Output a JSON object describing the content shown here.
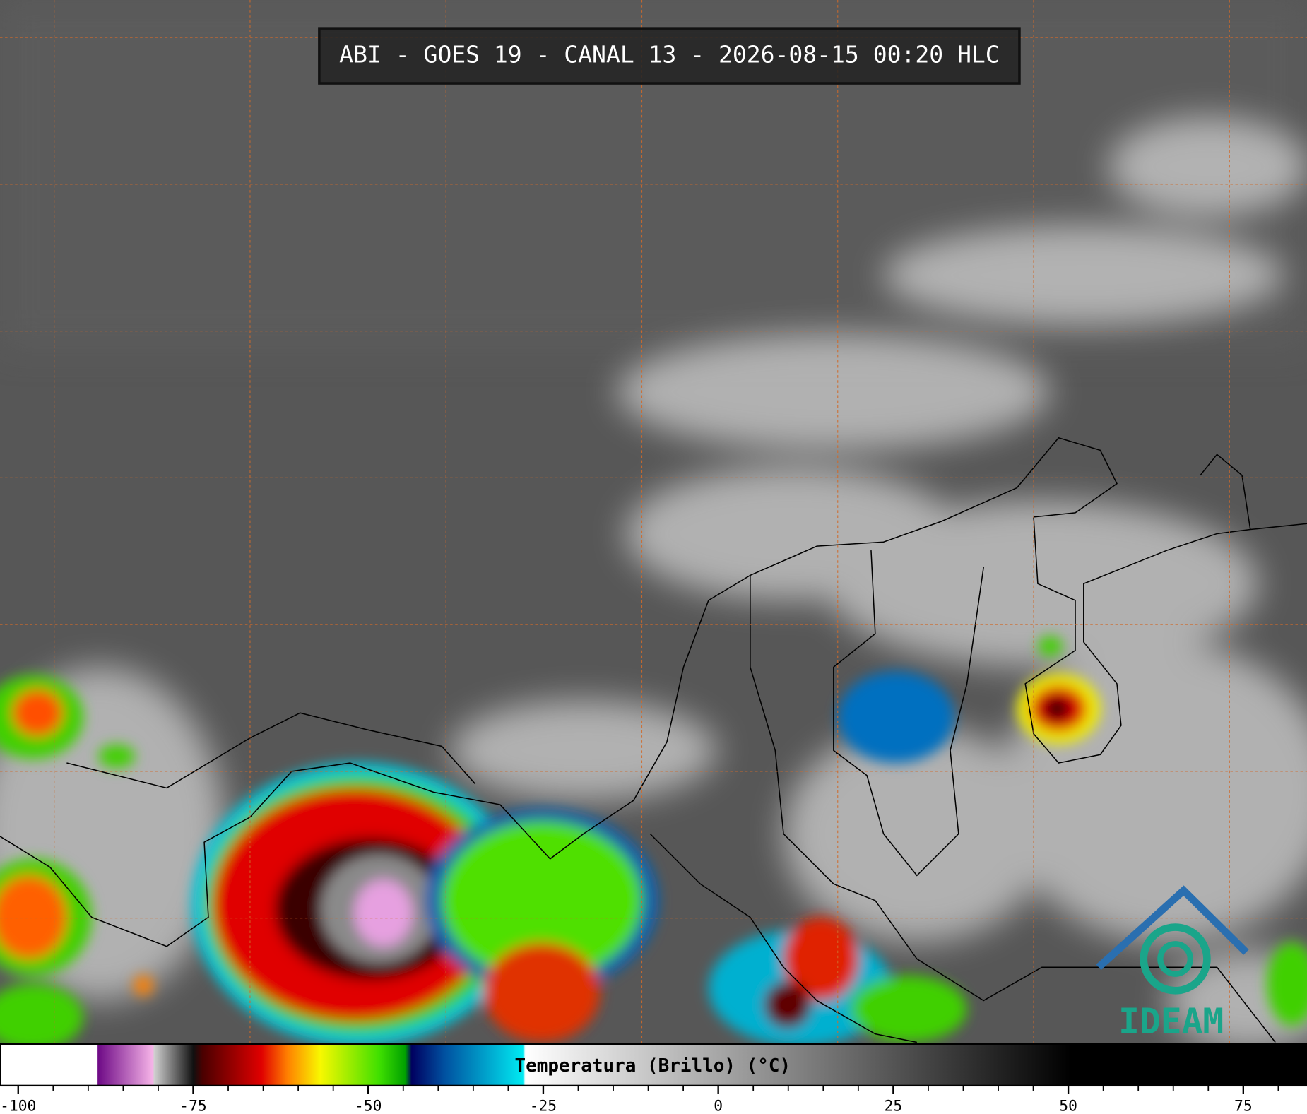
{
  "header": {
    "title": "ABI - GOES 19 - CANAL 13 - 2026-08-15 00:20 HLC"
  },
  "logo": {
    "text": "IDEAM"
  },
  "colorbar": {
    "label": "Temperatura (Brillo) (°C)",
    "xlim": [
      -102.6,
      84.1
    ],
    "xticks": [
      -100,
      -75,
      -50,
      -25,
      0,
      25,
      50,
      75
    ],
    "minor_xticks": [
      -95,
      -90,
      -85,
      -80,
      -70,
      -65,
      -60,
      -55,
      -45,
      -40,
      -35,
      -30,
      -20,
      -15,
      -10,
      -5,
      5,
      10,
      15,
      20,
      30,
      35,
      40,
      45,
      55,
      60,
      65,
      70,
      80
    ]
  }
}
